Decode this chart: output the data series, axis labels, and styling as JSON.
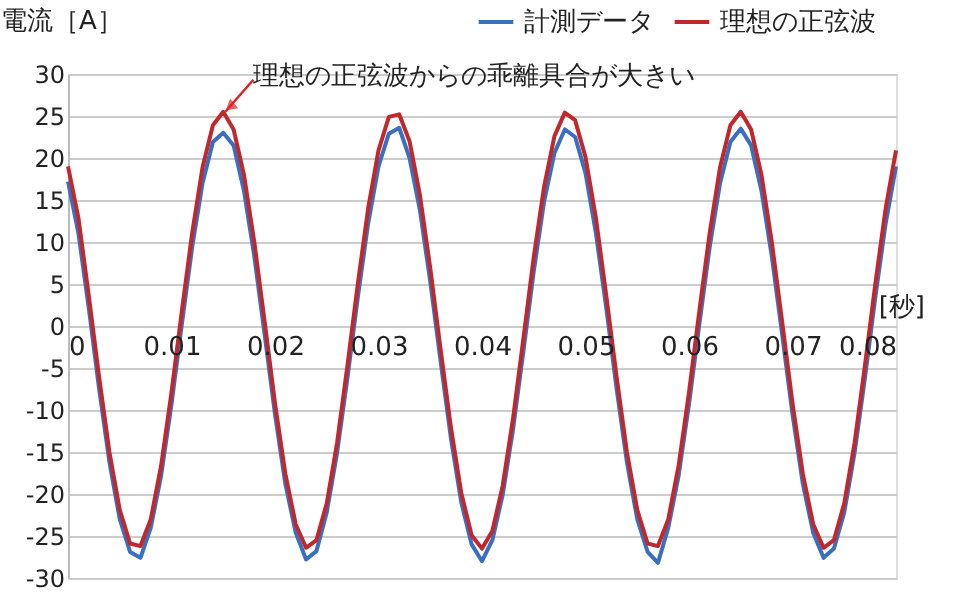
{
  "chart_data": {
    "type": "line",
    "ylabel": "電流［A］",
    "xlabel": "[秒]",
    "annotations": [
      {
        "text": "理想の正弦波からの乖離具合が大きい",
        "x": 0.0152,
        "y": 25.5
      }
    ],
    "x": [
      0,
      0.001,
      0.002,
      0.003,
      0.004,
      0.005,
      0.006,
      0.007,
      0.008,
      0.009,
      0.01,
      0.011,
      0.012,
      0.013,
      0.014,
      0.015,
      0.016,
      0.017,
      0.018,
      0.019,
      0.02,
      0.021,
      0.022,
      0.023,
      0.024,
      0.025,
      0.026,
      0.027,
      0.028,
      0.029,
      0.03,
      0.031,
      0.032,
      0.033,
      0.034,
      0.035,
      0.036,
      0.037,
      0.038,
      0.039,
      0.04,
      0.041,
      0.042,
      0.043,
      0.044,
      0.045,
      0.046,
      0.047,
      0.048,
      0.049,
      0.05,
      0.051,
      0.052,
      0.053,
      0.054,
      0.055,
      0.056,
      0.057,
      0.058,
      0.059,
      0.06,
      0.061,
      0.062,
      0.063,
      0.064,
      0.065,
      0.066,
      0.067,
      0.068,
      0.069,
      0.07,
      0.071,
      0.072,
      0.073,
      0.074,
      0.075,
      0.076,
      0.077,
      0.078,
      0.079,
      0.08
    ],
    "series": [
      {
        "name": "計測データ",
        "color": "#3a6fc0",
        "values": [
          17.2,
          11.1,
          2.2,
          -7.4,
          -16.2,
          -23.0,
          -26.9,
          -27.6,
          -24.0,
          -17.8,
          -9.3,
          0.2,
          9.4,
          17.0,
          21.9,
          23.0,
          21.5,
          16.1,
          8.3,
          -1.0,
          -10.5,
          -18.8,
          -24.6,
          -27.8,
          -26.8,
          -22.2,
          -15.1,
          -6.2,
          3.4,
          12.2,
          19.0,
          22.9,
          23.6,
          20.0,
          13.8,
          5.3,
          -4.2,
          -13.4,
          -21.0,
          -26.0,
          -28.0,
          -25.5,
          -20.1,
          -12.3,
          -3.0,
          6.5,
          14.8,
          20.6,
          23.4,
          22.5,
          18.2,
          11.1,
          2.2,
          -7.4,
          -16.2,
          -23.0,
          -26.9,
          -28.2,
          -24.0,
          -17.8,
          -9.3,
          0.2,
          9.4,
          17.0,
          21.9,
          23.5,
          21.5,
          16.1,
          8.3,
          -1.0,
          -10.5,
          -18.8,
          -24.6,
          -27.6,
          -26.5,
          -22.2,
          -15.1,
          -6.2,
          3.4,
          12.2,
          19.0
        ]
      },
      {
        "name": "理想の正弦波",
        "color": "#c0282d",
        "values": [
          19.0,
          12.9,
          3.7,
          -6.0,
          -15.0,
          -21.9,
          -25.9,
          -26.2,
          -23.0,
          -16.6,
          -7.9,
          1.8,
          11.1,
          18.9,
          23.9,
          25.5,
          23.4,
          18.0,
          10.0,
          0.5,
          -9.2,
          -17.6,
          -23.6,
          -26.4,
          -25.5,
          -21.1,
          -13.9,
          -4.7,
          5.0,
          14.0,
          20.9,
          24.9,
          25.2,
          22.0,
          15.6,
          6.9,
          -2.8,
          -12.1,
          -19.9,
          -24.9,
          -26.5,
          -24.4,
          -19.0,
          -11.0,
          -1.5,
          8.2,
          16.6,
          22.6,
          25.4,
          24.5,
          20.1,
          12.9,
          3.7,
          -6.0,
          -15.0,
          -21.9,
          -25.9,
          -26.2,
          -23.0,
          -16.6,
          -7.9,
          1.8,
          11.1,
          18.9,
          23.9,
          25.5,
          23.4,
          18.0,
          10.0,
          0.5,
          -9.2,
          -17.6,
          -23.6,
          -26.4,
          -25.5,
          -21.1,
          -13.9,
          -4.7,
          5.0,
          14.0,
          20.9
        ]
      }
    ],
    "xlim": [
      0,
      0.08
    ],
    "xticks": [
      0,
      0.01,
      0.02,
      0.03,
      0.04,
      0.05,
      0.06,
      0.07,
      0.08
    ],
    "ylim": [
      -30,
      30
    ],
    "yticks": [
      -30,
      -25,
      -20,
      -15,
      -10,
      -5,
      0,
      5,
      10,
      15,
      20,
      25,
      30
    ],
    "grid": "y",
    "legend": "top right",
    "marker": "none",
    "line_style": "solid"
  }
}
